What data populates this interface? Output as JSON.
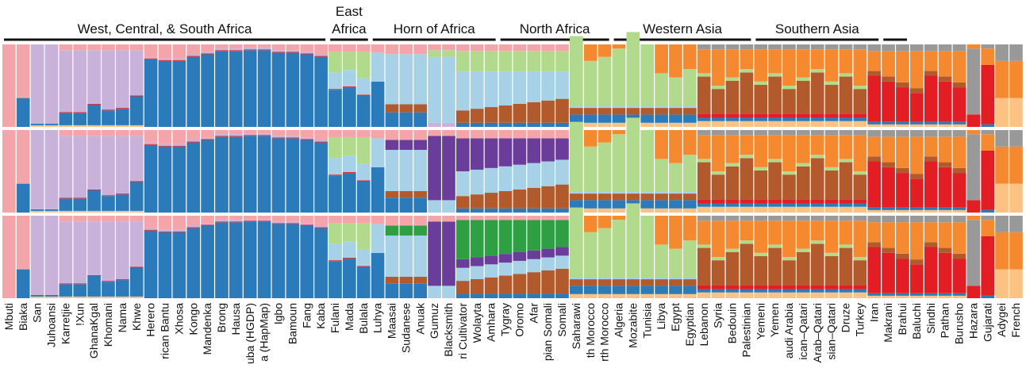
{
  "colors": {
    "pink": "#f4a5a9",
    "lavender": "#c9b2d9",
    "blue": "#2b7bba",
    "lightblue": "#a6d1e6",
    "lightgreen": "#b2da8c",
    "brown": "#b35a2c",
    "orange": "#f5892f",
    "red": "#e31d24",
    "gray": "#999999",
    "peach": "#fcc283",
    "purple": "#6a3d9a",
    "green": "#2ea043"
  },
  "chart_data": {
    "type": "bar",
    "stacked": true,
    "normalized": true,
    "panel_count": 3,
    "regions": [
      {
        "label": "West, Central, & South Africa",
        "start": 0,
        "end": 22
      },
      {
        "label": "East",
        "label2": "Africa",
        "start": 23,
        "end": 25
      },
      {
        "label": "Horn of Africa",
        "start": 26,
        "end": 34
      },
      {
        "label": "North Africa",
        "start": 35,
        "end": 42
      },
      {
        "label": "Western Asia",
        "start": 43,
        "end": 52
      },
      {
        "label": "Southern Asia",
        "start": 53,
        "end": 61
      },
      {
        "label": "",
        "start": 62,
        "end": 63
      }
    ],
    "categories": [
      "Mbuti",
      "Biaka",
      "San",
      "Juhoansi",
      "Karretjie",
      "!Xun",
      "GhanaKgal",
      "Khomani",
      "Nama",
      "Khwe",
      "Herero",
      "rican Bantu",
      "Xhosa",
      "Kongo",
      "Mandenka",
      "Brong",
      "Hausa",
      "uba (HGDP)",
      "a (HapMap)",
      "Igbo",
      "Bamoun",
      "Fang",
      "Kaba",
      "Fulani",
      "Mada",
      "Bulala",
      "Luhya",
      "Maasai",
      "Sudanese",
      "Anuak",
      "Gumuz",
      "Blacksmith",
      "ri Cultivator",
      "Wolayta",
      "Amhara",
      "Tygray",
      "Oromo",
      "Afar",
      "pian Somali",
      "Somali",
      "Saharawi",
      "th Morocco",
      "rth Morocco",
      "Algeria",
      "Mozabite",
      "Tunisia",
      "Libya",
      "Egypt",
      "Egyptian",
      "Lebanon",
      "Syria",
      "Bedouin",
      "Palestinian",
      "Yemeni",
      "Yemen",
      "audi Arabia",
      "ican–Qatari",
      "Arab–Qatari",
      "sian–Qatari",
      "Druze",
      "Turkey",
      "Iran",
      "Makrani",
      "Brahui",
      "Baluchi",
      "Sindhi",
      "Pathan",
      "Burusho",
      "Hazara",
      "Gujarati",
      "Adygei",
      "French"
    ],
    "components": [
      "pink",
      "lavender",
      "blue",
      "lightblue",
      "lightgreen",
      "brown",
      "orange",
      "red",
      "gray",
      "peach",
      "purple",
      "green"
    ]
  }
}
